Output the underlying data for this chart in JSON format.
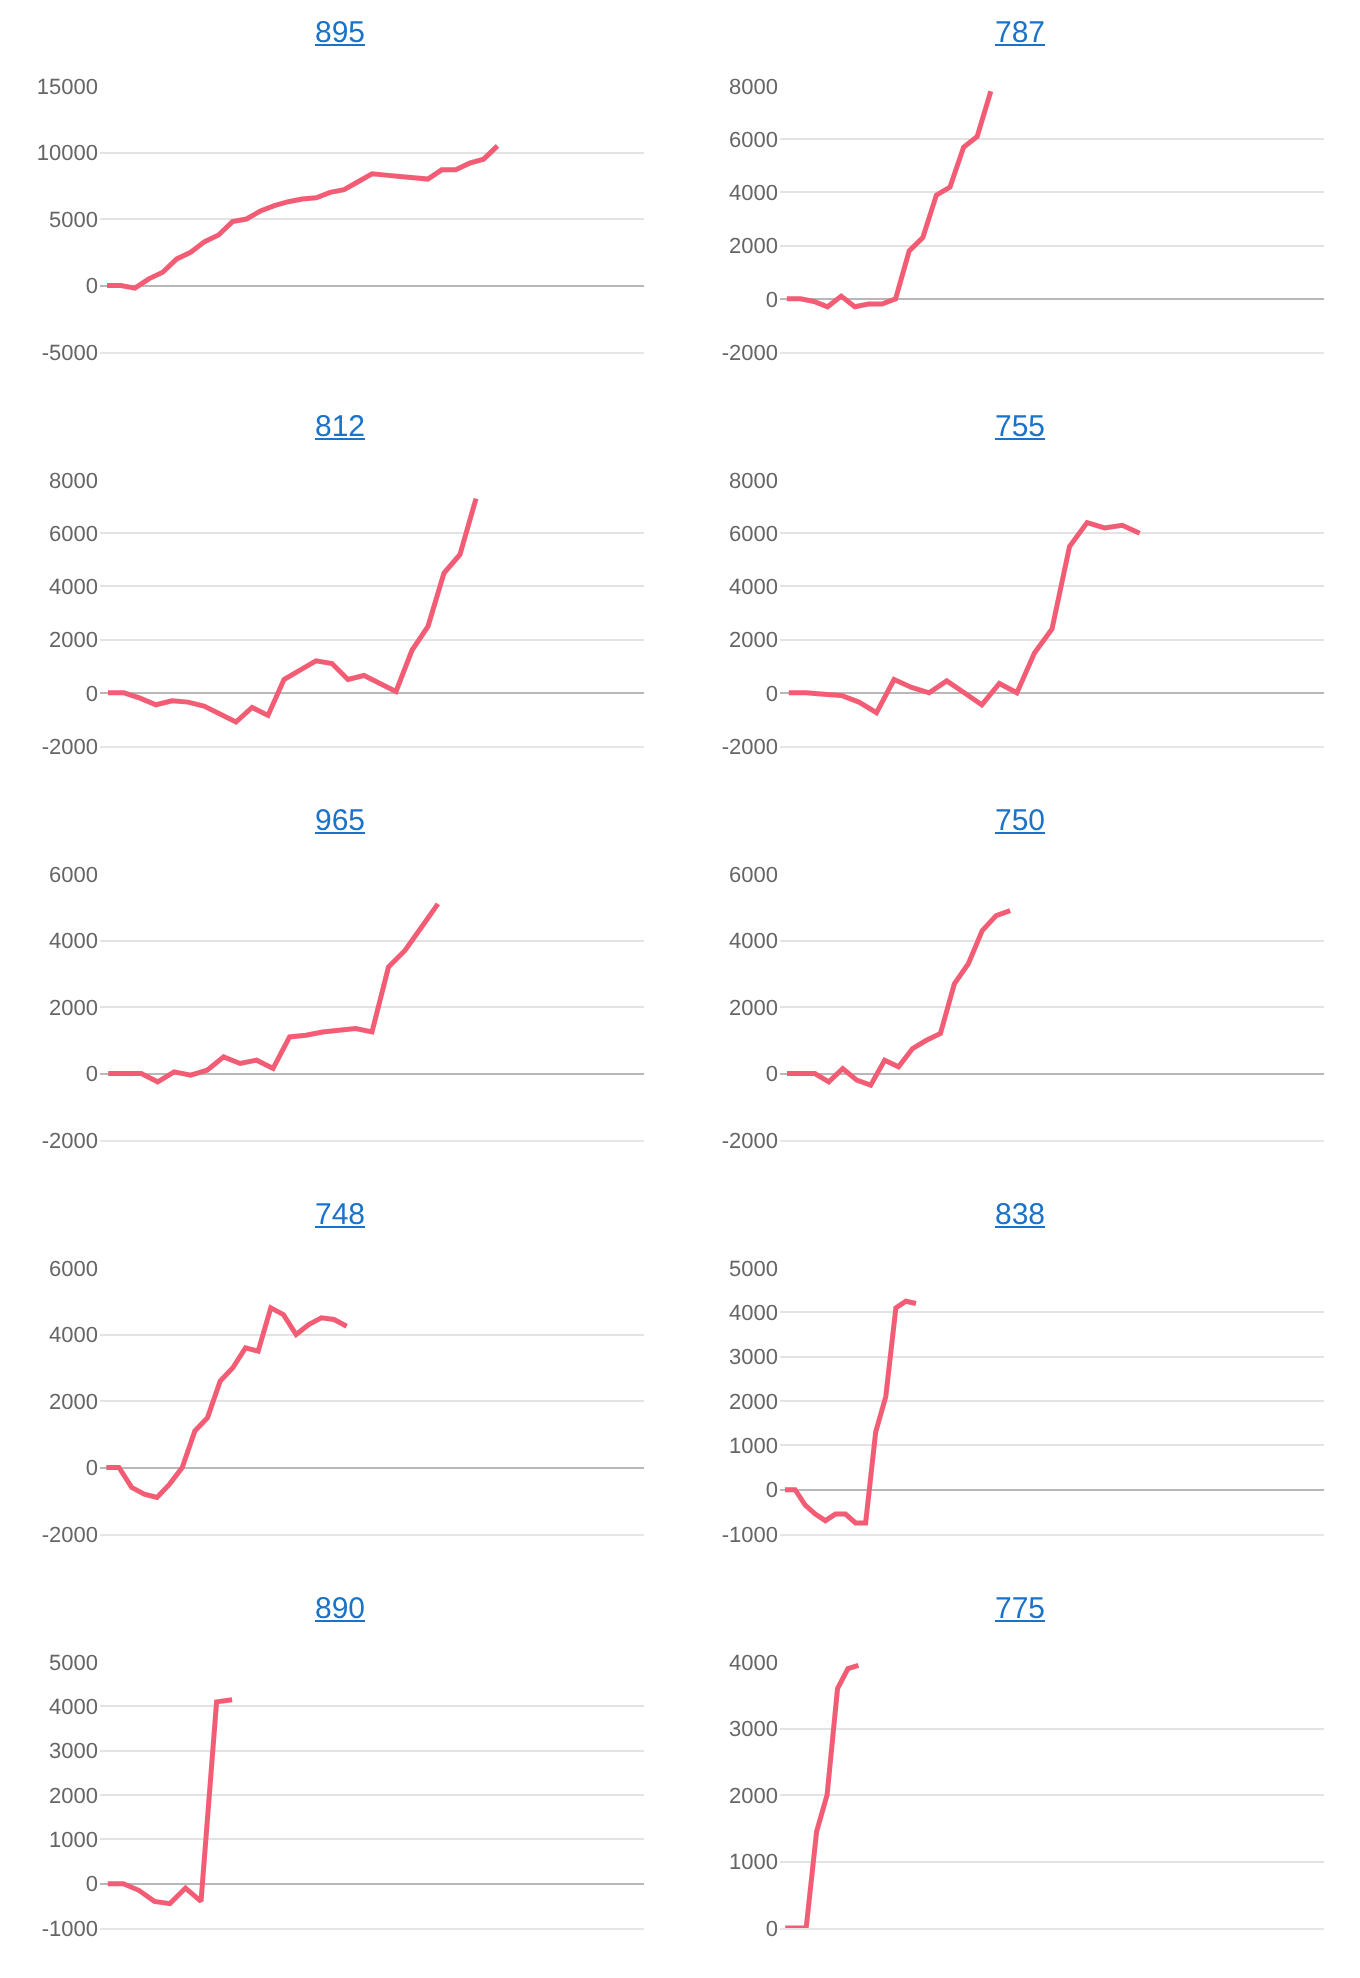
{
  "chart_data": [
    {
      "type": "line",
      "title": "895",
      "categories": [
        null,
        null,
        null,
        null,
        null,
        null,
        null,
        null,
        null,
        null,
        null,
        null,
        null,
        null,
        null,
        null,
        null,
        null,
        null,
        null,
        null,
        null,
        null,
        null,
        null,
        null,
        null,
        null,
        null,
        null,
        null,
        null,
        null,
        null,
        null,
        null,
        null,
        null,
        null
      ],
      "values": [
        0,
        0,
        -200,
        500,
        1000,
        2000,
        2500,
        3300,
        3800,
        4800,
        5000,
        5600,
        6000,
        6300,
        6500,
        6600,
        7000,
        7200,
        7800,
        8400,
        8300,
        8200,
        8100,
        8000,
        8700,
        8700,
        9200,
        9500,
        10500,
        null,
        null,
        null,
        null,
        null,
        null,
        null,
        null,
        null,
        null
      ],
      "color": "#f25c74",
      "ylim": [
        -5000,
        15000
      ],
      "yticks": [
        -5000,
        0,
        5000,
        10000,
        15000
      ],
      "grid": "y",
      "tick_labels": "y"
    },
    {
      "type": "line",
      "title": "787",
      "categories": [
        null,
        null,
        null,
        null,
        null,
        null,
        null,
        null,
        null,
        null,
        null,
        null,
        null,
        null,
        null,
        null,
        null,
        null,
        null,
        null,
        null,
        null,
        null,
        null,
        null,
        null,
        null,
        null,
        null,
        null,
        null,
        null,
        null,
        null,
        null,
        null,
        null,
        null,
        null,
        null
      ],
      "values": [
        0,
        0,
        -100,
        -300,
        100,
        -300,
        -200,
        -200,
        0,
        1800,
        2300,
        3900,
        4200,
        5700,
        6100,
        7800,
        null,
        null,
        null,
        null,
        null,
        null,
        null,
        null,
        null,
        null,
        null,
        null,
        null,
        null,
        null,
        null,
        null,
        null,
        null,
        null,
        null,
        null,
        null,
        null
      ],
      "color": "#f25c74",
      "ylim": [
        -2000,
        8000
      ],
      "yticks": [
        -2000,
        0,
        2000,
        4000,
        6000,
        8000
      ],
      "grid": "y",
      "tick_labels": "y"
    },
    {
      "type": "line",
      "title": "812",
      "categories": [
        null,
        null,
        null,
        null,
        null,
        null,
        null,
        null,
        null,
        null,
        null,
        null,
        null,
        null,
        null,
        null,
        null,
        null,
        null,
        null,
        null,
        null,
        null,
        null,
        null,
        null,
        null,
        null,
        null,
        null,
        null,
        null,
        null,
        null
      ],
      "values": [
        0,
        0,
        -200,
        -450,
        -300,
        -350,
        -500,
        -800,
        -1100,
        -550,
        -850,
        500,
        850,
        1200,
        1100,
        500,
        650,
        350,
        50,
        1600,
        2500,
        4500,
        5200,
        7300,
        null,
        null,
        null,
        null,
        null,
        null,
        null,
        null,
        null,
        null
      ],
      "color": "#f25c74",
      "ylim": [
        -2000,
        8000
      ],
      "yticks": [
        -2000,
        0,
        2000,
        4000,
        6000,
        8000
      ],
      "grid": "y",
      "tick_labels": "y"
    },
    {
      "type": "line",
      "title": "755",
      "categories": [
        null,
        null,
        null,
        null,
        null,
        null,
        null,
        null,
        null,
        null,
        null,
        null,
        null,
        null,
        null,
        null,
        null,
        null,
        null,
        null,
        null,
        null,
        null,
        null,
        null,
        null,
        null,
        null,
        null,
        null,
        null
      ],
      "values": [
        0,
        0,
        -50,
        -100,
        -350,
        -750,
        500,
        200,
        0,
        450,
        0,
        -450,
        350,
        0,
        1500,
        2400,
        5500,
        6400,
        6200,
        6300,
        6000,
        null,
        null,
        null,
        null,
        null,
        null,
        null,
        null,
        null,
        null
      ],
      "color": "#f25c74",
      "ylim": [
        -2000,
        8000
      ],
      "yticks": [
        -2000,
        0,
        2000,
        4000,
        6000,
        8000
      ],
      "grid": "y",
      "tick_labels": "y"
    },
    {
      "type": "line",
      "title": "965",
      "categories": [
        null,
        null,
        null,
        null,
        null,
        null,
        null,
        null,
        null,
        null,
        null,
        null,
        null,
        null,
        null,
        null,
        null,
        null,
        null,
        null,
        null,
        null,
        null,
        null,
        null,
        null,
        null,
        null,
        null,
        null,
        null,
        null,
        null
      ],
      "values": [
        0,
        0,
        0,
        -250,
        50,
        -50,
        100,
        500,
        300,
        400,
        150,
        1100,
        1150,
        1250,
        1300,
        1350,
        1250,
        3200,
        3700,
        4400,
        5100,
        null,
        null,
        null,
        null,
        null,
        null,
        null,
        null,
        null,
        null,
        null,
        null
      ],
      "color": "#f25c74",
      "ylim": [
        -2000,
        6000
      ],
      "yticks": [
        -2000,
        0,
        2000,
        4000,
        6000
      ],
      "grid": "y",
      "tick_labels": "y"
    },
    {
      "type": "line",
      "title": "750",
      "categories": [
        null,
        null,
        null,
        null,
        null,
        null,
        null,
        null,
        null,
        null,
        null,
        null,
        null,
        null,
        null,
        null,
        null,
        null,
        null,
        null,
        null,
        null,
        null,
        null,
        null,
        null,
        null,
        null,
        null,
        null,
        null,
        null,
        null,
        null,
        null,
        null,
        null,
        null,
        null
      ],
      "values": [
        0,
        0,
        0,
        -250,
        150,
        -200,
        -350,
        400,
        200,
        750,
        1000,
        1200,
        2700,
        3300,
        4300,
        4750,
        4900,
        null,
        null,
        null,
        null,
        null,
        null,
        null,
        null,
        null,
        null,
        null,
        null,
        null,
        null,
        null,
        null,
        null,
        null,
        null,
        null,
        null,
        null
      ],
      "color": "#f25c74",
      "ylim": [
        -2000,
        6000
      ],
      "yticks": [
        -2000,
        0,
        2000,
        4000,
        6000
      ],
      "grid": "y",
      "tick_labels": "y"
    },
    {
      "type": "line",
      "title": "748",
      "categories": [
        null,
        null,
        null,
        null,
        null,
        null,
        null,
        null,
        null,
        null,
        null,
        null,
        null,
        null,
        null,
        null,
        null,
        null,
        null,
        null,
        null,
        null,
        null,
        null,
        null,
        null,
        null,
        null,
        null,
        null,
        null,
        null,
        null,
        null,
        null,
        null,
        null,
        null,
        null,
        null,
        null,
        null,
        null
      ],
      "values": [
        0,
        0,
        -600,
        -800,
        -900,
        -500,
        0,
        1100,
        1500,
        2600,
        3000,
        3600,
        3500,
        4800,
        4600,
        4000,
        4300,
        4500,
        4450,
        4250,
        null,
        null,
        null,
        null,
        null,
        null,
        null,
        null,
        null,
        null,
        null,
        null,
        null,
        null,
        null,
        null,
        null,
        null,
        null,
        null,
        null,
        null,
        null
      ],
      "color": "#f25c74",
      "ylim": [
        -2000,
        6000
      ],
      "yticks": [
        -2000,
        0,
        2000,
        4000,
        6000
      ],
      "grid": "y",
      "tick_labels": "y"
    },
    {
      "type": "line",
      "title": "838",
      "categories": [
        null,
        null,
        null,
        null,
        null,
        null,
        null,
        null,
        null,
        null,
        null,
        null,
        null,
        null,
        null,
        null,
        null,
        null,
        null,
        null,
        null,
        null,
        null,
        null,
        null,
        null,
        null,
        null,
        null,
        null,
        null,
        null,
        null,
        null,
        null,
        null,
        null,
        null,
        null,
        null,
        null,
        null,
        null,
        null,
        null,
        null,
        null,
        null,
        null,
        null,
        null,
        null,
        null,
        null
      ],
      "values": [
        0,
        0,
        -350,
        -550,
        -700,
        -550,
        -550,
        -750,
        -750,
        1300,
        2100,
        4100,
        4250,
        4200,
        null,
        null,
        null,
        null,
        null,
        null,
        null,
        null,
        null,
        null,
        null,
        null,
        null,
        null,
        null,
        null,
        null,
        null,
        null,
        null,
        null,
        null,
        null,
        null,
        null,
        null,
        null,
        null,
        null,
        null,
        null,
        null,
        null,
        null,
        null,
        null,
        null,
        null,
        null,
        null
      ],
      "color": "#f25c74",
      "ylim": [
        -1000,
        5000
      ],
      "yticks": [
        -1000,
        0,
        1000,
        2000,
        3000,
        4000,
        5000
      ],
      "grid": "y",
      "tick_labels": "y"
    },
    {
      "type": "line",
      "title": "890",
      "categories": [
        null,
        null,
        null,
        null,
        null,
        null,
        null,
        null,
        null,
        null,
        null,
        null,
        null,
        null,
        null,
        null,
        null,
        null,
        null,
        null,
        null,
        null,
        null,
        null,
        null,
        null,
        null,
        null,
        null,
        null,
        null,
        null,
        null,
        null,
        null
      ],
      "values": [
        0,
        0,
        -150,
        -400,
        -450,
        -100,
        -400,
        4100,
        4150,
        null,
        null,
        null,
        null,
        null,
        null,
        null,
        null,
        null,
        null,
        null,
        null,
        null,
        null,
        null,
        null,
        null,
        null,
        null,
        null,
        null,
        null,
        null,
        null,
        null,
        null
      ],
      "color": "#f25c74",
      "ylim": [
        -1000,
        5000
      ],
      "yticks": [
        -1000,
        0,
        1000,
        2000,
        3000,
        4000,
        5000
      ],
      "grid": "y",
      "tick_labels": "y"
    },
    {
      "type": "line",
      "title": "775",
      "categories": [
        null,
        null,
        null,
        null,
        null,
        null,
        null,
        null,
        null,
        null,
        null,
        null,
        null,
        null,
        null,
        null,
        null,
        null,
        null,
        null,
        null,
        null,
        null,
        null,
        null,
        null,
        null,
        null,
        null,
        null,
        null,
        null,
        null,
        null,
        null,
        null,
        null,
        null,
        null,
        null,
        null,
        null,
        null,
        null,
        null,
        null,
        null,
        null,
        null,
        null,
        null,
        null
      ],
      "values": [
        0,
        0,
        0,
        1450,
        2000,
        3600,
        3900,
        3950,
        null,
        null,
        null,
        null,
        null,
        null,
        null,
        null,
        null,
        null,
        null,
        null,
        null,
        null,
        null,
        null,
        null,
        null,
        null,
        null,
        null,
        null,
        null,
        null,
        null,
        null,
        null,
        null,
        null,
        null,
        null,
        null,
        null,
        null,
        null,
        null,
        null,
        null,
        null,
        null,
        null,
        null,
        null,
        null
      ],
      "color": "#f25c74",
      "ylim": [
        0,
        4000
      ],
      "yticks": [
        0,
        1000,
        2000,
        3000,
        4000
      ],
      "grid": "y",
      "tick_labels": "y"
    }
  ]
}
